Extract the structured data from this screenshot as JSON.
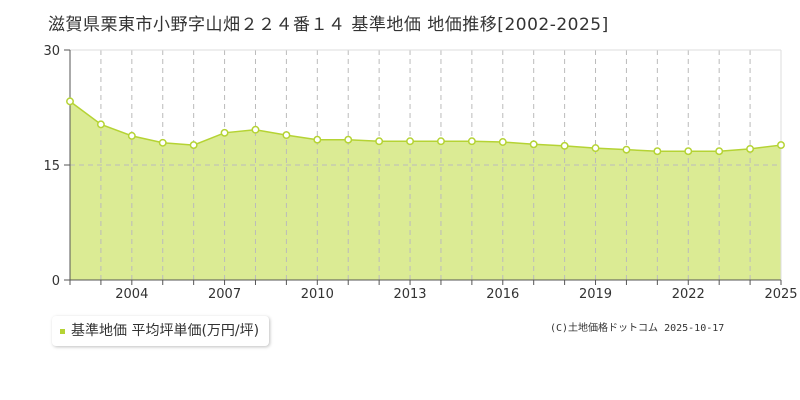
{
  "title": "滋賀県栗東市小野字山畑２２４番１４ 基準地価 地価推移[2002-2025]",
  "legend": {
    "label": "基準地価 平均坪単価(万円/坪)",
    "color": "#b5d334"
  },
  "credit": "(C)土地価格ドットコム 2025-10-17",
  "chart_data": {
    "type": "area",
    "title": "滋賀県栗東市小野字山畑２２４番１４ 基準地価 地価推移[2002-2025]",
    "xlabel": "",
    "ylabel": "",
    "ylim": [
      0,
      30
    ],
    "yticks": [
      0,
      15,
      30
    ],
    "xticks": [
      2004,
      2007,
      2010,
      2013,
      2016,
      2019,
      2022,
      2025
    ],
    "x": [
      2002,
      2003,
      2004,
      2005,
      2006,
      2007,
      2008,
      2009,
      2010,
      2011,
      2012,
      2013,
      2014,
      2015,
      2016,
      2017,
      2018,
      2019,
      2020,
      2021,
      2022,
      2023,
      2024,
      2025
    ],
    "series": [
      {
        "name": "基準地価 平均坪単価(万円/坪)",
        "values": [
          23.3,
          20.3,
          18.8,
          17.9,
          17.6,
          19.2,
          19.6,
          18.9,
          18.3,
          18.3,
          18.1,
          18.1,
          18.1,
          18.1,
          18.0,
          17.7,
          17.5,
          17.2,
          17.0,
          16.8,
          16.8,
          16.8,
          17.1,
          17.6
        ]
      }
    ],
    "grid": true,
    "legend_position": "bottom-left"
  }
}
